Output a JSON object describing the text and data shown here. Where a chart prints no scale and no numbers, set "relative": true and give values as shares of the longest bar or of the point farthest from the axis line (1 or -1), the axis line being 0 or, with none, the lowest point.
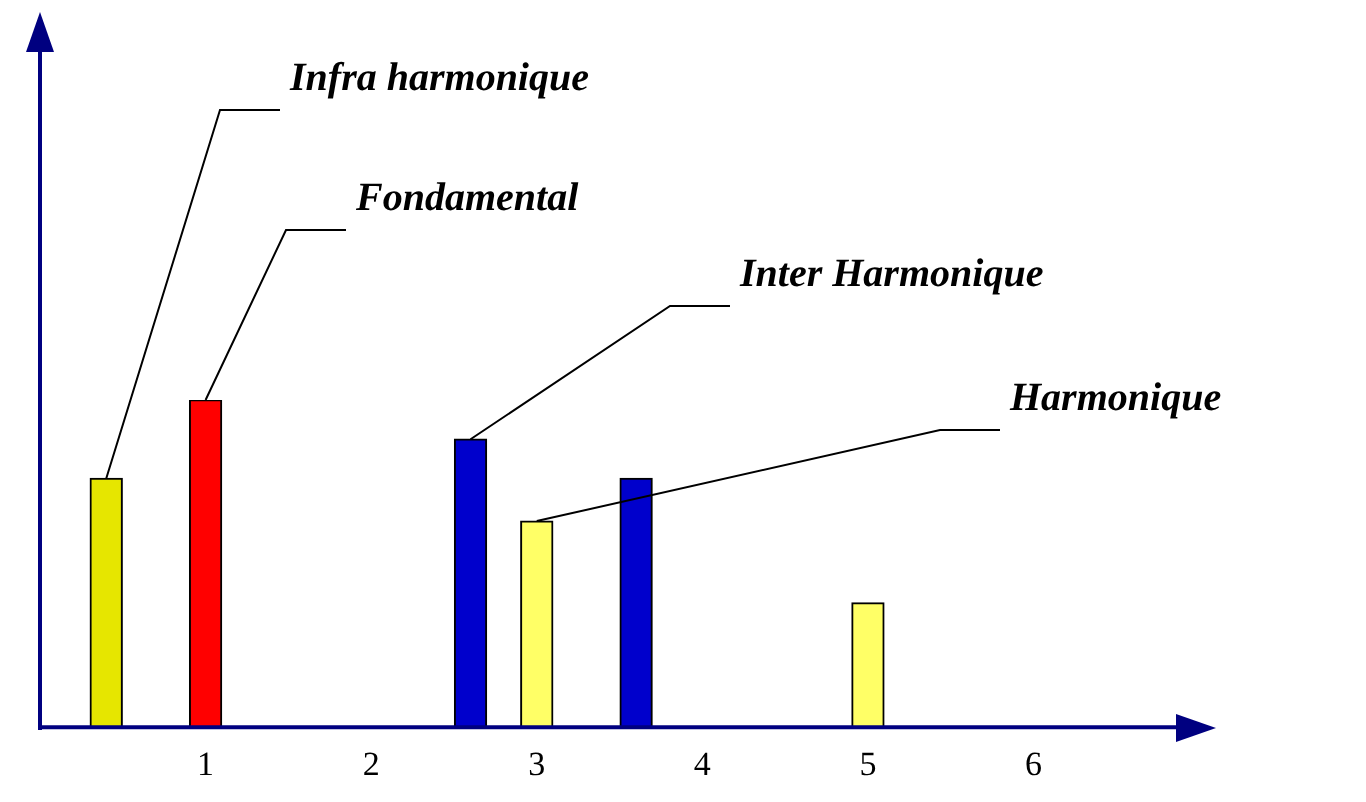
{
  "chart_data": {
    "type": "bar",
    "relative": true,
    "x": [
      0.4,
      1,
      2.6,
      3,
      3.6,
      5
    ],
    "values": [
      0.76,
      1,
      0.88,
      0.63,
      0.76,
      0.38
    ],
    "colors": [
      "#e6e600",
      "#ff0000",
      "#0000cc",
      "#ffff66",
      "#0000cc",
      "#ffff66"
    ],
    "xlim": [
      0,
      6.8
    ],
    "xticks": [
      1,
      2,
      3,
      4,
      5,
      6
    ],
    "grid": false,
    "legend": false,
    "annotations": [
      {
        "text": "Infra harmonique",
        "x": 0.4,
        "y": 0.76
      },
      {
        "text": "Fondamental",
        "x": 1,
        "y": 1
      },
      {
        "text": "Inter Harmonique",
        "x": 2.6,
        "y": 0.88
      },
      {
        "text": "Harmonique",
        "x": 3,
        "y": 0.63
      }
    ]
  }
}
